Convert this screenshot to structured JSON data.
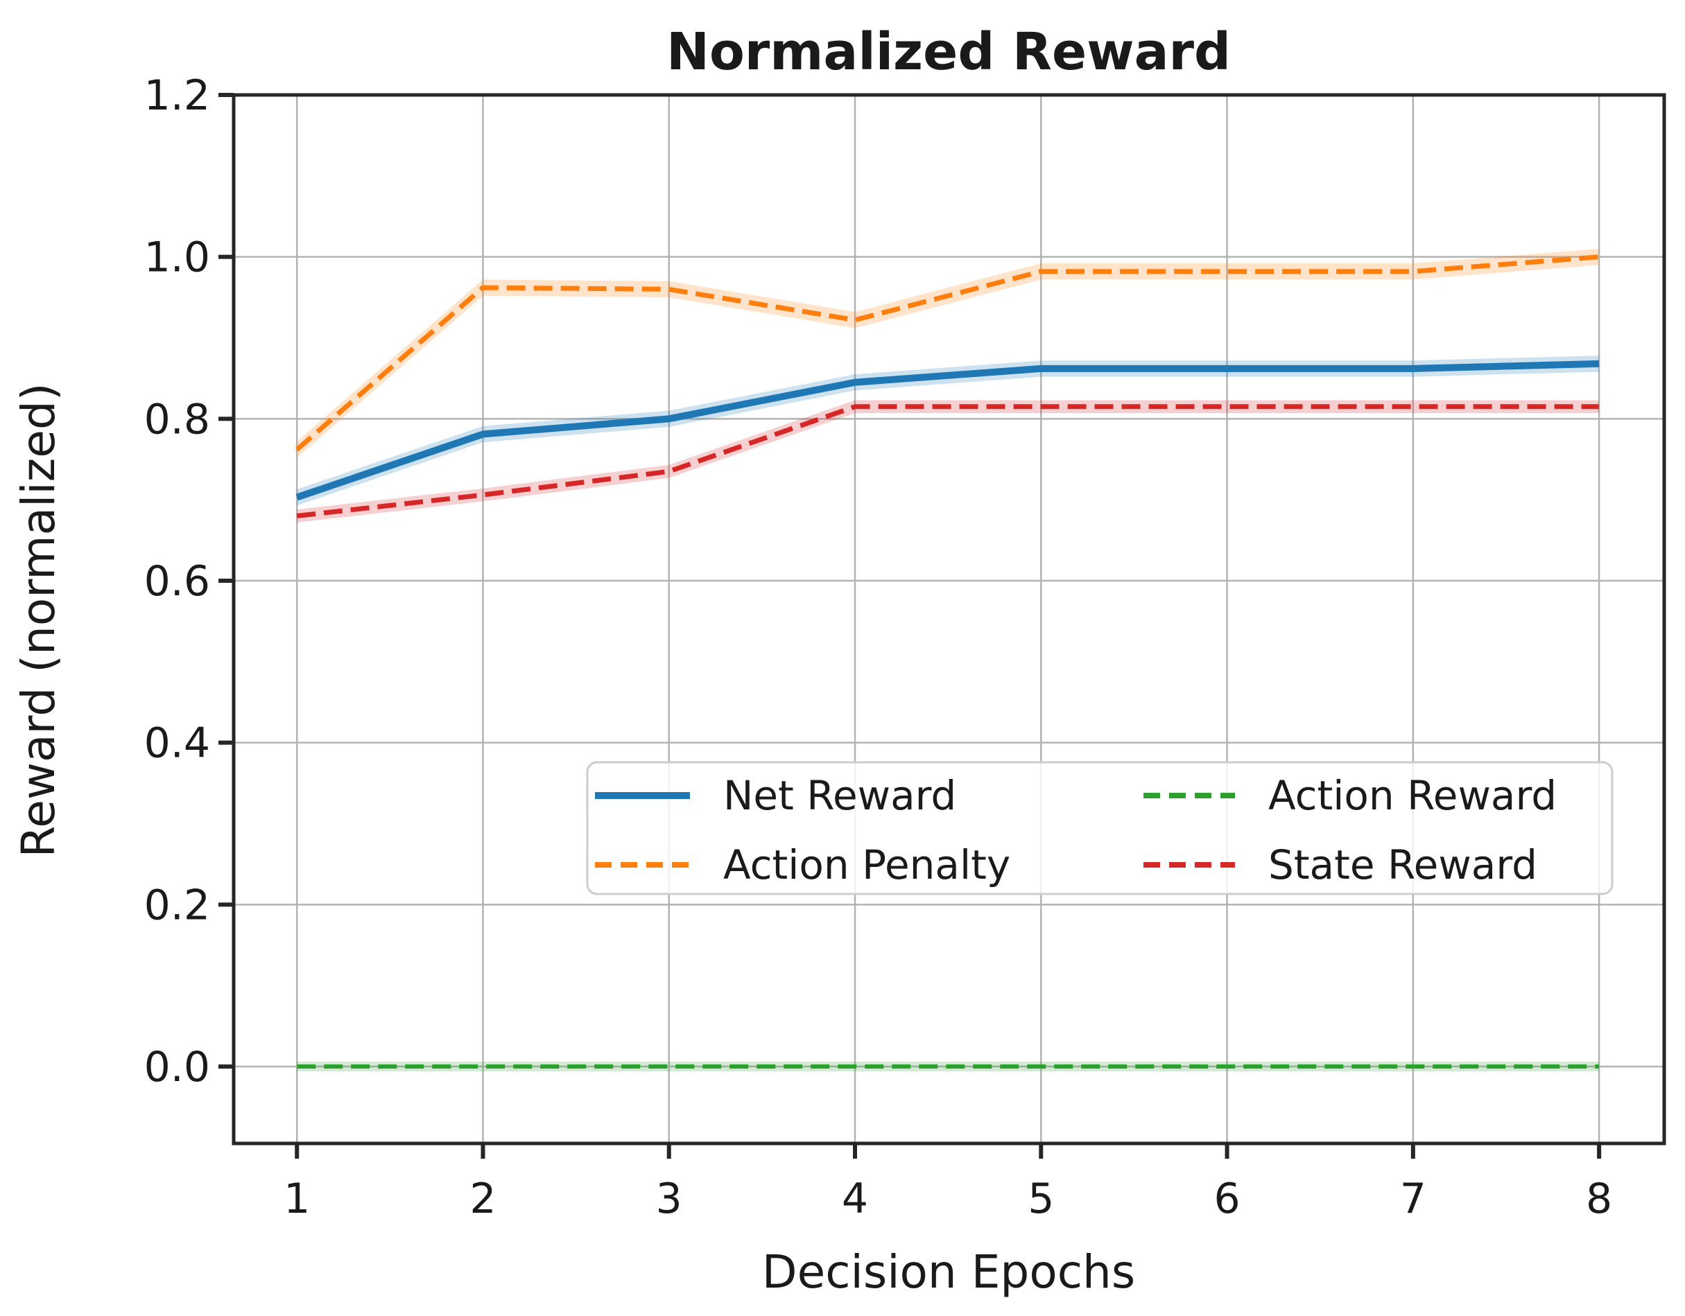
{
  "chart_data": {
    "type": "line",
    "title": "Normalized Reward",
    "xlabel": "Decision Epochs",
    "ylabel": "Reward (normalized)",
    "x": [
      1,
      2,
      3,
      4,
      5,
      6,
      7,
      8
    ],
    "xlim": [
      0.66,
      8.35
    ],
    "ylim": [
      -0.095,
      1.2
    ],
    "xticks": [
      "1",
      "2",
      "3",
      "4",
      "5",
      "6",
      "7",
      "8"
    ],
    "yticks": [
      "0.0",
      "0.2",
      "0.4",
      "0.6",
      "0.8",
      "1.0",
      "1.2"
    ],
    "ytick_values": [
      0.0,
      0.2,
      0.4,
      0.6,
      0.8,
      1.0,
      1.2
    ],
    "grid": true,
    "grid_color": "#b3b3b3",
    "background_color": "#ffffff",
    "spine_color": "#262626",
    "legend_position": "lower center, two columns, inside axes",
    "series": [
      {
        "name": "Net Reward",
        "color": "#1f77b4",
        "style": "solid",
        "line_width": 10,
        "band_halfwidth": 0.01,
        "values": [
          0.703,
          0.781,
          0.8,
          0.845,
          0.862,
          0.862,
          0.862,
          0.868
        ]
      },
      {
        "name": "Action Penalty",
        "color": "#ff7f0e",
        "style": "dashed",
        "line_width": 7,
        "band_halfwidth": 0.01,
        "values": [
          0.762,
          0.962,
          0.96,
          0.922,
          0.982,
          0.982,
          0.982,
          1.0
        ]
      },
      {
        "name": "Action Reward",
        "color": "#2ca02c",
        "style": "dashed",
        "line_width": 6,
        "band_halfwidth": 0.006,
        "values": [
          0.0,
          0.0,
          0.0,
          0.0,
          0.0,
          0.0,
          0.0,
          0.0
        ]
      },
      {
        "name": "State Reward",
        "color": "#d62728",
        "style": "dashed",
        "line_width": 7,
        "band_halfwidth": 0.008,
        "values": [
          0.68,
          0.706,
          0.735,
          0.815,
          0.815,
          0.815,
          0.815,
          0.815
        ]
      }
    ]
  }
}
